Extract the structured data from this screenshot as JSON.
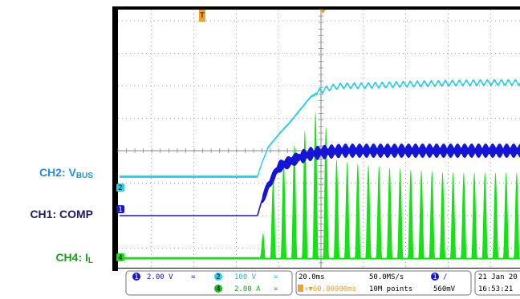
{
  "channel_labels": {
    "ch2": {
      "name": "CH2: V",
      "sub": "BUS"
    },
    "ch1": {
      "name": "CH1: COMP",
      "sub": ""
    },
    "ch4": {
      "name": "CH4: I",
      "sub": "L"
    }
  },
  "readout": {
    "ch1_badge": "1",
    "ch1_scale": "2.00 V",
    "ch2_badge": "2",
    "ch2_scale": "100 V",
    "ch4_badge": "4",
    "ch4_scale": "2.00 A",
    "timebase": "20.0ms",
    "sample_rate": "50.0MS/s",
    "trigger_pos": "+▼60.80000ms",
    "record_length": "10M points",
    "trigger_badge": "1",
    "trigger_level": "560mV",
    "date": "21 Jan 20",
    "time": "16:53:21"
  },
  "markers": {
    "trigger": "T",
    "ch1": "1",
    "ch2": "2",
    "ch4": "4"
  },
  "colors": {
    "background": "#000000",
    "grid": "#8a8a8a",
    "ch1": "#1515d8",
    "ch2": "#25d0e8",
    "ch4": "#16e016",
    "trigger": "#f0a030"
  },
  "chart_data": {
    "type": "line",
    "x_unit": "ms",
    "x_scale_per_div": 20.0,
    "x_divisions_visible": 9.5,
    "trigger_time_ms": 0,
    "series": [
      {
        "name": "CH2: VBUS",
        "unit": "V",
        "scale_per_div": 100,
        "marker_position_div": -0.8,
        "x": [
          -100,
          -40,
          -30,
          -28,
          -25,
          -20,
          -15,
          -10,
          -5,
          0,
          5,
          10,
          20,
          40,
          60,
          80,
          85
        ],
        "y": [
          0,
          0,
          0,
          40,
          90,
          130,
          165,
          205,
          245,
          265,
          275,
          280,
          280,
          285,
          288,
          290,
          290
        ]
      },
      {
        "name": "CH1: COMP",
        "unit": "V",
        "scale_per_div": 2.0,
        "marker_position_div": -2.0,
        "x": [
          -100,
          -30,
          -28,
          -25,
          -20,
          -10,
          -5,
          0,
          10,
          40,
          85
        ],
        "y": [
          0,
          0,
          0.9,
          1.8,
          3.0,
          3.6,
          3.8,
          3.9,
          4.0,
          4.0,
          4.0
        ]
      },
      {
        "name": "CH4: IL",
        "unit": "A",
        "scale_per_div": 2.0,
        "marker_position_div": -3.3,
        "envelope": "peaks",
        "x": [
          -100,
          -29,
          -25,
          -20,
          -15,
          -10,
          -5,
          0,
          5,
          10,
          20,
          40,
          60,
          85
        ],
        "y": [
          0,
          0,
          4.0,
          5.6,
          6.6,
          7.4,
          8.4,
          9.8,
          6.2,
          6.0,
          5.8,
          5.5,
          5.3,
          5.3
        ]
      }
    ]
  }
}
